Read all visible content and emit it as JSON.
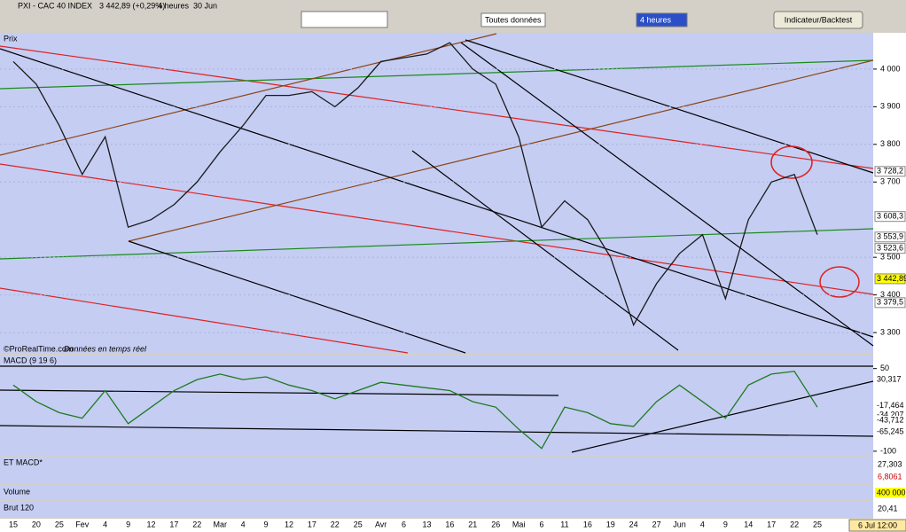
{
  "toolbar": {
    "symbol": "PXI - CAC 40 INDEX",
    "quote": "3 442,89 (+0,29%)",
    "period": "4 heures",
    "date": "30 Jun",
    "data_select": "Toutes données",
    "timeframe_select": "4 heures",
    "button": "Indicateur/Backtest"
  },
  "chart_data": {
    "type": "line",
    "title": "Prix",
    "credit": "©ProRealTime.com",
    "credit_note": "Données en temps réel",
    "categories": [
      "15",
      "20",
      "25",
      "Fev",
      "4",
      "9",
      "12",
      "17",
      "22",
      "Mar",
      "4",
      "9",
      "12",
      "17",
      "22",
      "25",
      "Avr",
      "6",
      "13",
      "16",
      "21",
      "26",
      "Mai",
      "6",
      "11",
      "16",
      "19",
      "24",
      "27",
      "Jun",
      "4",
      "9",
      "14",
      "17",
      "22",
      "25"
    ],
    "values": [
      4020,
      3960,
      3850,
      3720,
      3820,
      3580,
      3600,
      3640,
      3700,
      3780,
      3850,
      3930,
      3930,
      3940,
      3900,
      3950,
      4020,
      4030,
      4040,
      4070,
      4000,
      3960,
      3820,
      3580,
      3650,
      3600,
      3500,
      3320,
      3430,
      3510,
      3560,
      3390,
      3600,
      3700,
      3720,
      3560
    ],
    "color": "#1a1a1a",
    "ylim": [
      3246,
      4094
    ],
    "yticks": [
      {
        "value": 4000,
        "label": "4 000"
      },
      {
        "value": 3900,
        "label": "3 900"
      },
      {
        "value": 3800,
        "label": "3 800"
      },
      {
        "value": 3700,
        "label": "3 700"
      },
      {
        "value": 3500,
        "label": "3 500"
      },
      {
        "value": 3400,
        "label": "3 400"
      },
      {
        "value": 3300,
        "label": "3 300"
      }
    ],
    "price_labels": [
      {
        "value": 3728.2,
        "label": "3 728,2"
      },
      {
        "value": 3608.3,
        "label": "3 608,3"
      },
      {
        "value": 3553.9,
        "label": "3 553,9"
      },
      {
        "value": 3523.6,
        "label": "3 523,6"
      },
      {
        "value": 3442.89,
        "label": "3 442,89"
      },
      {
        "value": 3379.5,
        "label": "3 379,5"
      }
    ],
    "cursor_label": "6 Jul 12:00"
  },
  "macd": {
    "title": "MACD (9 19 6)",
    "values": [
      20,
      -10,
      -30,
      -40,
      10,
      -50,
      -20,
      10,
      30,
      40,
      30,
      35,
      20,
      10,
      -5,
      10,
      25,
      20,
      15,
      10,
      -10,
      -20,
      -60,
      -95,
      -20,
      -30,
      -50,
      -55,
      -10,
      20,
      -10,
      -40,
      20,
      40,
      45,
      -20
    ],
    "color": "#1f7a1f",
    "ylim": [
      -105,
      72
    ],
    "yticks": [
      50,
      -100
    ],
    "value_labels": [
      {
        "value": 30.317,
        "label": "30,317"
      },
      {
        "value": -17.464,
        "label": "-17,464"
      },
      {
        "value": -34.207,
        "label": "-34,207"
      },
      {
        "value": -43.712,
        "label": "-43,712"
      },
      {
        "value": -65.245,
        "label": "-65,245"
      }
    ]
  },
  "panels": [
    {
      "title": "ET MACD*",
      "labels": [
        "27,303",
        "6,8061"
      ]
    },
    {
      "title": "Volume",
      "labels": [
        "400 000"
      ]
    },
    {
      "title": "Brut 120",
      "labels": [
        "20,41"
      ]
    }
  ]
}
